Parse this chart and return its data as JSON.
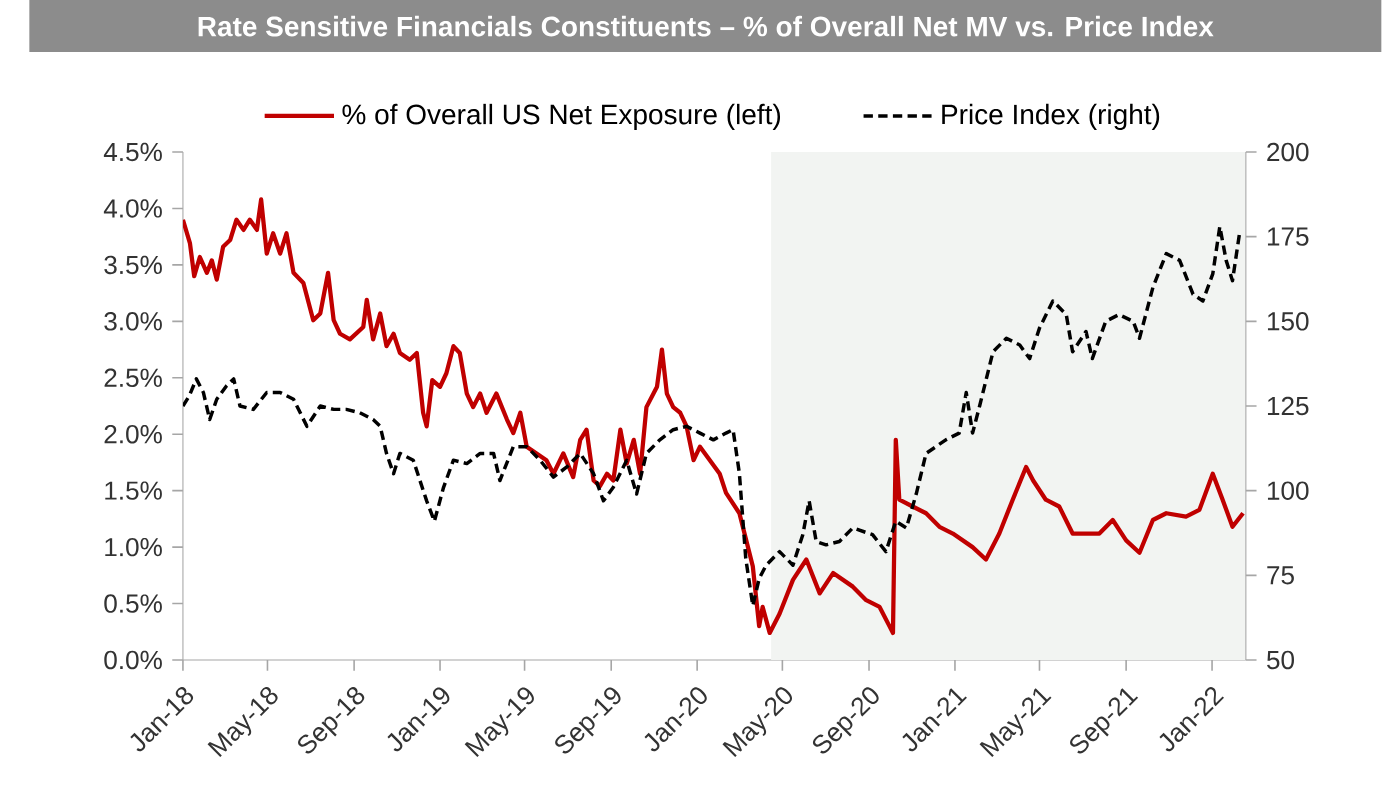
{
  "chart_data": {
    "type": "line",
    "title": "Rate Sensitive Financials Constituents – % of Overall Net MV vs. Price Index",
    "xlim": [
      "2018-01-01",
      "2022-02-18"
    ],
    "xticks": [
      {
        "value": "2018-01-01",
        "label": "Jan-18"
      },
      {
        "value": "2018-05-01",
        "label": "May-18"
      },
      {
        "value": "2018-09-01",
        "label": "Sep-18"
      },
      {
        "value": "2019-01-01",
        "label": "Jan-19"
      },
      {
        "value": "2019-05-01",
        "label": "May-19"
      },
      {
        "value": "2019-09-01",
        "label": "Sep-19"
      },
      {
        "value": "2020-01-01",
        "label": "Jan-20"
      },
      {
        "value": "2020-05-01",
        "label": "May-20"
      },
      {
        "value": "2020-09-01",
        "label": "Sep-20"
      },
      {
        "value": "2021-01-01",
        "label": "Jan-21"
      },
      {
        "value": "2021-05-01",
        "label": "May-21"
      },
      {
        "value": "2021-09-01",
        "label": "Sep-21"
      },
      {
        "value": "2022-01-01",
        "label": "Jan-22"
      }
    ],
    "ylim": [
      0,
      4.5
    ],
    "yticks": [
      {
        "value": 0,
        "label": "0.0%"
      },
      {
        "value": 0.5,
        "label": "0.5%"
      },
      {
        "value": 1,
        "label": "1.0%"
      },
      {
        "value": 1.5,
        "label": "1.5%"
      },
      {
        "value": 2,
        "label": "2.0%"
      },
      {
        "value": 2.5,
        "label": "2.5%"
      },
      {
        "value": 3,
        "label": "3.0%"
      },
      {
        "value": 3.5,
        "label": "3.5%"
      },
      {
        "value": 4,
        "label": "4.0%"
      },
      {
        "value": 4.5,
        "label": "4.5%"
      }
    ],
    "y2lim": [
      50,
      200
    ],
    "y2ticks": [
      50,
      75,
      100,
      125,
      150,
      175,
      200
    ],
    "legend": "top",
    "bands": [
      {
        "axis": "x",
        "from": "2020-04-15",
        "to": "2022-02-18",
        "color": "#f2f4f2"
      }
    ],
    "series": [
      {
        "name": "% of Overall US Net Exposure (left)",
        "color": "#c00000",
        "line_style": "solid",
        "x": [
          "2018-01-01",
          "2018-01-11",
          "2018-01-17",
          "2018-01-25",
          "2018-02-04",
          "2018-02-11",
          "2018-02-18",
          "2018-02-27",
          "2018-03-09",
          "2018-03-18",
          "2018-03-28",
          "2018-04-06",
          "2018-04-16",
          "2018-04-22",
          "2018-04-30",
          "2018-05-09",
          "2018-05-19",
          "2018-05-28",
          "2018-06-07",
          "2018-06-21",
          "2018-07-05",
          "2018-07-15",
          "2018-07-26",
          "2018-08-03",
          "2018-08-12",
          "2018-08-26",
          "2018-09-14",
          "2018-09-19",
          "2018-09-28",
          "2018-10-08",
          "2018-10-17",
          "2018-10-27",
          "2018-11-05",
          "2018-11-19",
          "2018-11-29",
          "2018-12-08",
          "2018-12-13",
          "2018-12-21",
          "2019-01-01",
          "2019-01-10",
          "2019-01-20",
          "2019-01-29",
          "2019-02-08",
          "2019-02-17",
          "2019-02-27",
          "2019-03-08",
          "2019-03-22",
          "2019-04-06",
          "2019-04-15",
          "2019-04-25",
          "2019-05-04",
          "2019-05-18",
          "2019-06-01",
          "2019-06-11",
          "2019-06-25",
          "2019-07-09",
          "2019-07-19",
          "2019-07-28",
          "2019-08-07",
          "2019-08-16",
          "2019-08-26",
          "2019-09-04",
          "2019-09-14",
          "2019-09-23",
          "2019-10-03",
          "2019-10-12",
          "2019-10-21",
          "2019-11-05",
          "2019-11-12",
          "2019-11-19",
          "2019-11-28",
          "2019-12-08",
          "2019-12-17",
          "2019-12-27",
          "2020-01-05",
          "2020-02-02",
          "2020-02-11",
          "2020-03-01",
          "2020-03-20",
          "2020-03-29",
          "2020-04-03",
          "2020-04-13",
          "2020-04-27",
          "2020-05-16",
          "2020-06-04",
          "2020-06-23",
          "2020-07-12",
          "2020-08-09",
          "2020-08-28",
          "2020-09-16",
          "2020-09-30",
          "2020-10-05",
          "2020-10-09",
          "2020-10-14",
          "2020-11-02",
          "2020-11-21",
          "2020-12-10",
          "2020-12-29",
          "2021-01-26",
          "2021-02-14",
          "2021-03-05",
          "2021-03-24",
          "2021-04-12",
          "2021-04-22",
          "2021-05-10",
          "2021-05-29",
          "2021-06-17",
          "2021-07-06",
          "2021-07-25",
          "2021-08-13",
          "2021-09-01",
          "2021-09-20",
          "2021-10-09",
          "2021-10-28",
          "2021-11-25",
          "2021-12-14",
          "2022-01-02",
          "2022-01-16",
          "2022-01-30",
          "2022-02-14"
        ],
        "values": [
          3.9,
          3.69,
          3.4,
          3.57,
          3.43,
          3.54,
          3.37,
          3.66,
          3.72,
          3.9,
          3.81,
          3.9,
          3.81,
          4.08,
          3.6,
          3.78,
          3.6,
          3.78,
          3.43,
          3.34,
          3.01,
          3.07,
          3.43,
          3.01,
          2.89,
          2.84,
          2.95,
          3.19,
          2.84,
          3.07,
          2.78,
          2.89,
          2.72,
          2.66,
          2.72,
          2.19,
          2.07,
          2.48,
          2.42,
          2.54,
          2.78,
          2.72,
          2.36,
          2.24,
          2.36,
          2.19,
          2.36,
          2.13,
          2.01,
          2.19,
          1.89,
          1.83,
          1.77,
          1.65,
          1.83,
          1.62,
          1.95,
          2.04,
          1.59,
          1.54,
          1.65,
          1.59,
          2.04,
          1.74,
          1.95,
          1.65,
          2.24,
          2.42,
          2.75,
          2.36,
          2.24,
          2.19,
          2.07,
          1.77,
          1.89,
          1.65,
          1.48,
          1.3,
          0.83,
          0.3,
          0.47,
          0.24,
          0.41,
          0.71,
          0.89,
          0.59,
          0.77,
          0.65,
          0.53,
          0.47,
          0.3,
          0.24,
          1.95,
          1.42,
          1.36,
          1.3,
          1.18,
          1.12,
          1.0,
          0.89,
          1.12,
          1.42,
          1.71,
          1.59,
          1.42,
          1.36,
          1.12,
          1.12,
          1.12,
          1.24,
          1.06,
          0.95,
          1.24,
          1.3,
          1.27,
          1.33,
          1.65,
          1.42,
          1.18,
          1.3
        ]
      },
      {
        "name": "Price Index (right)",
        "color": "#000000",
        "line_style": "dashed",
        "axis": "y2",
        "x": [
          "2018-01-01",
          "2018-01-10",
          "2018-01-20",
          "2018-01-30",
          "2018-02-08",
          "2018-02-18",
          "2018-03-04",
          "2018-03-14",
          "2018-03-23",
          "2018-04-11",
          "2018-04-30",
          "2018-05-19",
          "2018-06-07",
          "2018-06-26",
          "2018-07-15",
          "2018-08-03",
          "2018-08-21",
          "2018-09-09",
          "2018-09-28",
          "2018-10-08",
          "2018-10-17",
          "2018-10-27",
          "2018-11-05",
          "2018-11-24",
          "2018-12-13",
          "2018-12-24",
          "2019-01-06",
          "2019-01-20",
          "2019-02-08",
          "2019-02-27",
          "2019-03-18",
          "2019-03-27",
          "2019-04-15",
          "2019-05-04",
          "2019-05-23",
          "2019-06-11",
          "2019-06-30",
          "2019-07-19",
          "2019-08-07",
          "2019-08-21",
          "2019-09-04",
          "2019-09-23",
          "2019-10-07",
          "2019-10-21",
          "2019-11-09",
          "2019-11-28",
          "2019-12-17",
          "2020-01-05",
          "2020-01-24",
          "2020-02-11",
          "2020-02-21",
          "2020-03-01",
          "2020-03-10",
          "2020-03-20",
          "2020-03-29",
          "2020-04-08",
          "2020-04-27",
          "2020-05-16",
          "2020-05-30",
          "2020-06-08",
          "2020-06-18",
          "2020-07-02",
          "2020-07-21",
          "2020-08-09",
          "2020-09-06",
          "2020-09-25",
          "2020-10-09",
          "2020-10-24",
          "2020-11-07",
          "2020-11-21",
          "2020-12-19",
          "2021-01-07",
          "2021-01-17",
          "2021-01-26",
          "2021-02-05",
          "2021-02-24",
          "2021-03-15",
          "2021-04-03",
          "2021-04-17",
          "2021-05-01",
          "2021-05-20",
          "2021-06-08",
          "2021-06-17",
          "2021-07-06",
          "2021-07-15",
          "2021-08-03",
          "2021-08-22",
          "2021-09-11",
          "2021-09-20",
          "2021-10-09",
          "2021-10-28",
          "2021-11-16",
          "2021-12-05",
          "2021-12-19",
          "2022-01-02",
          "2022-01-12",
          "2022-01-21",
          "2022-01-30",
          "2022-02-09"
        ],
        "values": [
          125,
          128,
          133,
          129,
          121,
          127,
          131,
          133,
          125,
          124,
          129,
          129,
          127,
          119,
          125,
          124,
          124,
          123,
          121,
          119,
          111,
          105,
          111,
          109,
          97,
          91,
          101,
          109,
          108,
          111,
          111,
          103,
          113,
          113,
          109,
          104,
          107,
          111,
          105,
          97,
          101,
          109,
          99,
          111,
          115,
          118,
          119,
          117,
          115,
          117,
          118,
          105,
          80,
          66,
          74,
          78,
          82,
          78,
          87,
          97,
          85,
          84,
          85,
          89,
          87,
          82,
          91,
          89,
          99,
          111,
          115,
          117,
          129,
          117,
          125,
          141,
          145,
          143,
          139,
          148,
          156,
          152,
          141,
          147,
          139,
          150,
          152,
          150,
          145,
          160,
          170,
          168,
          158,
          156,
          164,
          178,
          168,
          162,
          176
        ]
      }
    ]
  }
}
